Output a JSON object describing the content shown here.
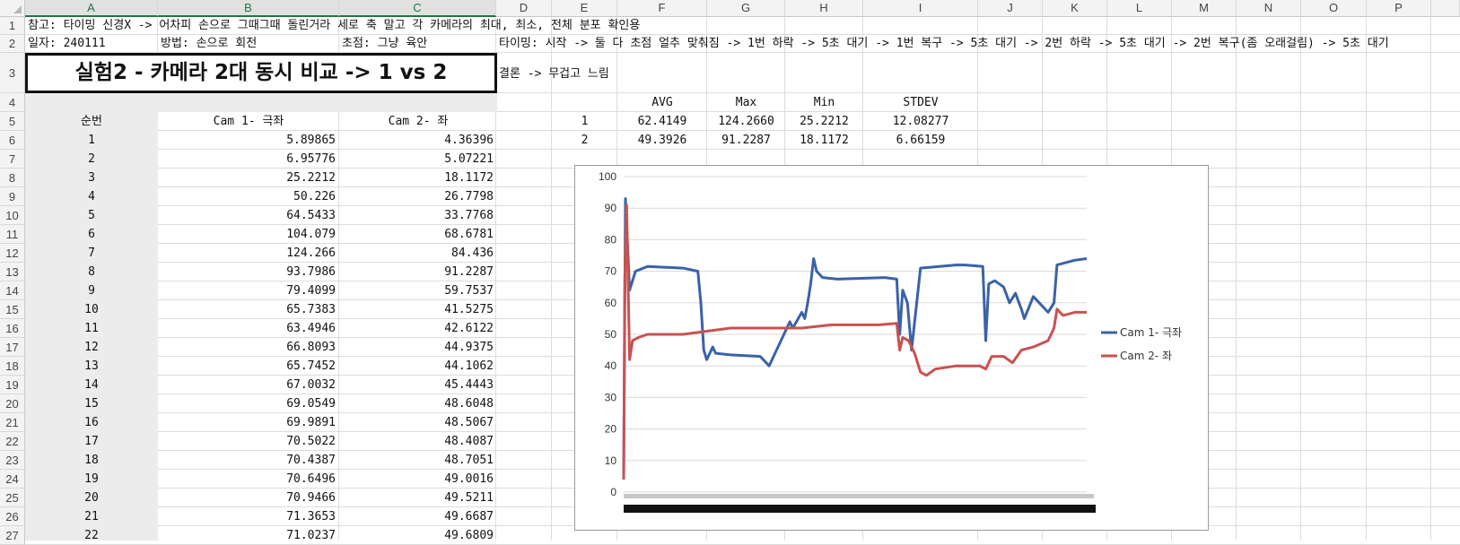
{
  "sheet": {
    "columns": [
      "A",
      "B",
      "C",
      "D",
      "E",
      "F",
      "G",
      "H",
      "I",
      "J",
      "K",
      "L",
      "M",
      "N",
      "O",
      "P"
    ],
    "selected_columns": [
      "A",
      "B",
      "C"
    ],
    "rows": [
      "1",
      "2",
      "3",
      "4",
      "5",
      "6",
      "7",
      "8",
      "9",
      "10",
      "11",
      "12",
      "13",
      "14",
      "15",
      "16",
      "17",
      "18",
      "19",
      "20",
      "21",
      "22",
      "23",
      "24",
      "25",
      "26",
      "27"
    ],
    "row1_note": "참고: 타이밍 신경X -> 어차피 손으로 그때그때 돌린거라 세로 축 말고 각 카메라의 최대, 최소, 전체 분포 확인용",
    "row2_date": "일자: 240111",
    "row2_method": "방법: 손으로 회전",
    "row2_focus": "초점: 그냥 육안",
    "row2_timing": "타이밍: 시작 -> 둘 다 초점 얼추 맞춰짐 -> 1번 하락 -> 5초 대기 -> 1번 복구 -> 5초 대기 -> 2번 하락 -> 5초 대기 -> 2번 복구(좀 오래걸림) -> 5초 대기",
    "title": "실험2 - 카메라 2대 동시 비교 -> 1 vs 2",
    "conclusion": "결론 -> 무겁고 느림",
    "table_headers": [
      "순번",
      "Cam 1- 극좌",
      "Cam 2- 좌"
    ],
    "table_rows": [
      [
        "1",
        "5.89865",
        "4.36396"
      ],
      [
        "2",
        "6.95776",
        "5.07221"
      ],
      [
        "3",
        "25.2212",
        "18.1172"
      ],
      [
        "4",
        "50.226",
        "26.7798"
      ],
      [
        "5",
        "64.5433",
        "33.7768"
      ],
      [
        "6",
        "104.079",
        "68.6781"
      ],
      [
        "7",
        "124.266",
        "84.436"
      ],
      [
        "8",
        "93.7986",
        "91.2287"
      ],
      [
        "9",
        "79.4099",
        "59.7537"
      ],
      [
        "10",
        "65.7383",
        "41.5275"
      ],
      [
        "11",
        "63.4946",
        "42.6122"
      ],
      [
        "12",
        "66.8093",
        "44.9375"
      ],
      [
        "13",
        "65.7452",
        "44.1062"
      ],
      [
        "14",
        "67.0032",
        "45.4443"
      ],
      [
        "15",
        "69.0549",
        "48.6048"
      ],
      [
        "16",
        "69.9891",
        "48.5067"
      ],
      [
        "17",
        "70.5022",
        "48.4087"
      ],
      [
        "18",
        "70.4387",
        "48.7051"
      ],
      [
        "19",
        "70.6496",
        "49.0016"
      ],
      [
        "20",
        "70.9466",
        "49.5211"
      ],
      [
        "21",
        "71.3653",
        "49.6687"
      ],
      [
        "22",
        "71.0237",
        "49.6809"
      ]
    ],
    "stats_headers": [
      "AVG",
      "Max",
      "Min",
      "STDEV"
    ],
    "stats_rows": [
      {
        "label": "1",
        "avg": "62.4149",
        "max": "124.2660",
        "min": "25.2212",
        "stdev": "12.08277"
      },
      {
        "label": "2",
        "avg": "49.3926",
        "max": "91.2287",
        "min": "18.1172",
        "stdev": "6.66159"
      }
    ]
  },
  "colors": {
    "cam1": "#3a62a8",
    "cam2": "#c85250",
    "grid": "#d9d9d9",
    "selected_header": "#217346"
  },
  "chart_data": {
    "type": "line",
    "yticks": [
      "0",
      "10",
      "20",
      "30",
      "40",
      "50",
      "60",
      "70",
      "80",
      "90",
      "100"
    ],
    "ylim": [
      0,
      100
    ],
    "legend_position": "right",
    "series": [
      {
        "name": "Cam 1- 극좌",
        "color": "#3a62a8",
        "points": [
          [
            0,
            4
          ],
          [
            3,
            93
          ],
          [
            10,
            64
          ],
          [
            20,
            70
          ],
          [
            40,
            71.5
          ],
          [
            100,
            71
          ],
          [
            125,
            70
          ],
          [
            130,
            60
          ],
          [
            135,
            45
          ],
          [
            140,
            42
          ],
          [
            150,
            46
          ],
          [
            155,
            44
          ],
          [
            180,
            43.5
          ],
          [
            230,
            43
          ],
          [
            245,
            40
          ],
          [
            255,
            44
          ],
          [
            270,
            50
          ],
          [
            280,
            54
          ],
          [
            285,
            52
          ],
          [
            300,
            57
          ],
          [
            305,
            55
          ],
          [
            310,
            60
          ],
          [
            315,
            66
          ],
          [
            320,
            74
          ],
          [
            325,
            70
          ],
          [
            335,
            68
          ],
          [
            360,
            67.5
          ],
          [
            440,
            68
          ],
          [
            460,
            67.5
          ],
          [
            465,
            50
          ],
          [
            470,
            64
          ],
          [
            478,
            60
          ],
          [
            485,
            45
          ],
          [
            500,
            71
          ],
          [
            560,
            72
          ],
          [
            575,
            72
          ],
          [
            605,
            71.5
          ],
          [
            610,
            48
          ],
          [
            615,
            66
          ],
          [
            625,
            67
          ],
          [
            640,
            65
          ],
          [
            650,
            60
          ],
          [
            660,
            63
          ],
          [
            670,
            58
          ],
          [
            675,
            55
          ],
          [
            690,
            62
          ],
          [
            700,
            60
          ],
          [
            715,
            57
          ],
          [
            725,
            60
          ],
          [
            730,
            72
          ],
          [
            760,
            73.5
          ],
          [
            780,
            74
          ]
        ]
      },
      {
        "name": "Cam 2- 좌",
        "color": "#c85250",
        "points": [
          [
            0,
            4
          ],
          [
            2,
            68
          ],
          [
            5,
            91
          ],
          [
            10,
            42
          ],
          [
            15,
            48
          ],
          [
            25,
            49
          ],
          [
            40,
            50
          ],
          [
            100,
            50
          ],
          [
            140,
            51
          ],
          [
            180,
            52
          ],
          [
            250,
            52
          ],
          [
            300,
            52
          ],
          [
            350,
            53
          ],
          [
            430,
            53
          ],
          [
            460,
            53.5
          ],
          [
            465,
            45
          ],
          [
            470,
            49
          ],
          [
            480,
            48
          ],
          [
            490,
            44
          ],
          [
            500,
            38
          ],
          [
            510,
            37
          ],
          [
            525,
            39
          ],
          [
            560,
            40
          ],
          [
            600,
            40
          ],
          [
            610,
            39
          ],
          [
            620,
            43
          ],
          [
            640,
            43
          ],
          [
            655,
            41
          ],
          [
            670,
            45
          ],
          [
            690,
            46
          ],
          [
            715,
            48
          ],
          [
            725,
            52
          ],
          [
            730,
            58
          ],
          [
            740,
            56
          ],
          [
            760,
            57
          ],
          [
            780,
            57
          ]
        ]
      }
    ],
    "x_range": [
      0,
      780
    ]
  }
}
